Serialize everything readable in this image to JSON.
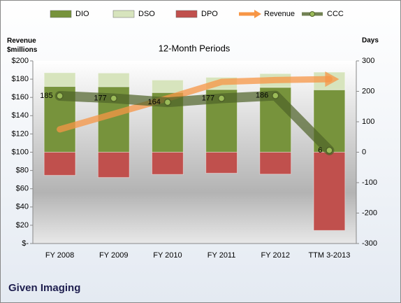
{
  "chart_data": {
    "type": "combo",
    "title": "12-Month Periods",
    "company": "Given Imaging",
    "y_label": "Revenue $millions",
    "y2_label": "Days",
    "categories": [
      "FY 2008",
      "FY 2009",
      "FY 2010",
      "FY 2011",
      "FY 2012",
      "TTM 3-2013"
    ],
    "ylim": [
      0,
      200
    ],
    "yticks": [
      {
        "value": 0,
        "label": "$-"
      },
      {
        "value": 20,
        "label": "$20"
      },
      {
        "value": 40,
        "label": "$40"
      },
      {
        "value": 60,
        "label": "$60"
      },
      {
        "value": 80,
        "label": "$80"
      },
      {
        "value": 100,
        "label": "$100"
      },
      {
        "value": 120,
        "label": "$120"
      },
      {
        "value": 140,
        "label": "$140"
      },
      {
        "value": 160,
        "label": "$160"
      },
      {
        "value": 180,
        "label": "$180"
      },
      {
        "value": 200,
        "label": "$200"
      }
    ],
    "y2lim": [
      -300,
      300
    ],
    "y2ticks": [
      300,
      200,
      100,
      0,
      -100,
      -200,
      -300
    ],
    "legend": "top",
    "series": [
      {
        "name": "DIO",
        "type": "bar",
        "stack": "up",
        "axis": "y2",
        "color": "#77933c",
        "values": [
          216,
          215,
          196,
          206,
          213,
          205
        ]
      },
      {
        "name": "DSO",
        "type": "bar",
        "stack": "up",
        "axis": "y2",
        "color": "#d7e4bd",
        "values": [
          45,
          45,
          41,
          40,
          45,
          58
        ]
      },
      {
        "name": "DPO",
        "type": "bar",
        "stack": "down",
        "axis": "y2",
        "color": "#c0504d",
        "values": [
          76,
          83,
          73,
          69,
          72,
          257
        ]
      },
      {
        "name": "Revenue",
        "type": "arrow",
        "color": "#f79646",
        "values": [
          125,
          142,
          159,
          177,
          179,
          180
        ]
      },
      {
        "name": "CCC",
        "type": "line",
        "axis": "y2",
        "color": "#4f6228",
        "values": [
          185,
          177,
          164,
          177,
          186,
          6
        ]
      }
    ]
  }
}
